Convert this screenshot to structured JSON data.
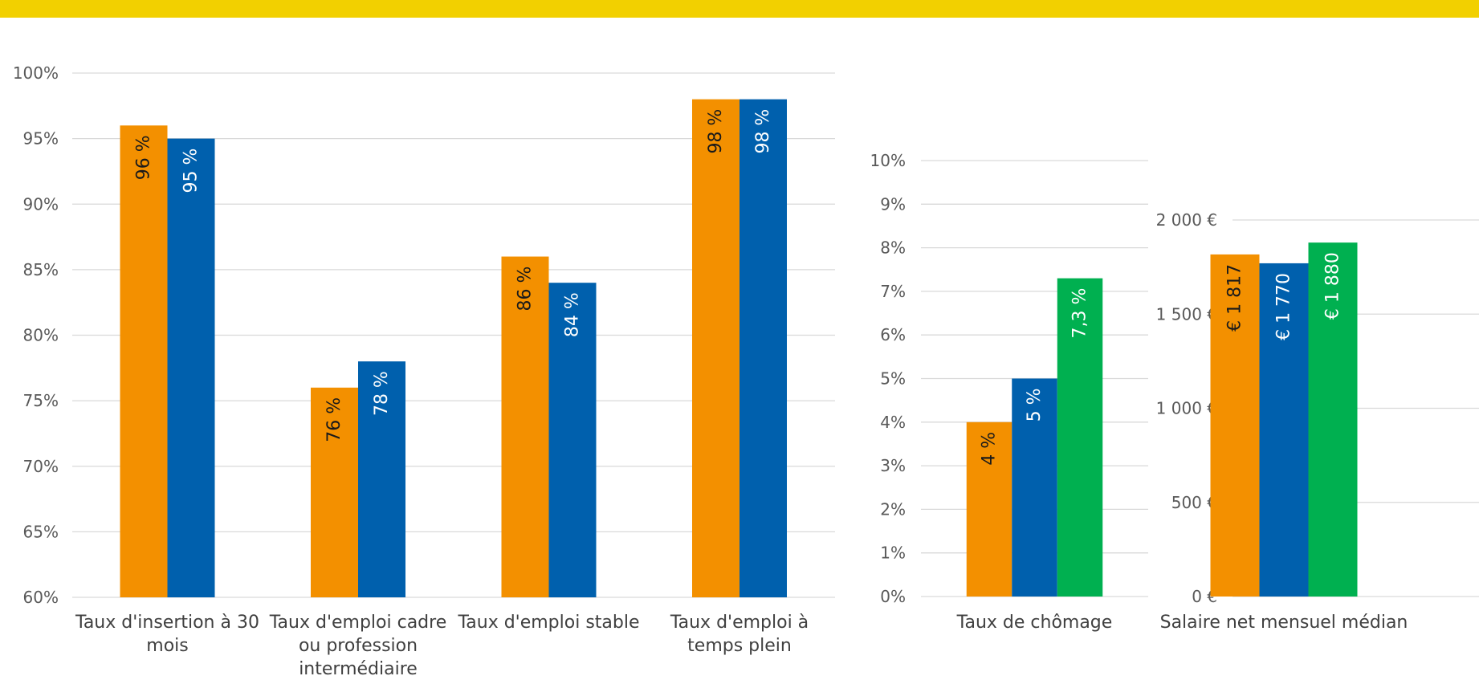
{
  "colors": {
    "banner": "#F2D000",
    "orange": "#F39000",
    "blue": "#0060AD",
    "green": "#00B050",
    "grid": "#D9D9D9",
    "axis_text": "#595959",
    "category_text": "#404040"
  },
  "chart_data": [
    {
      "type": "bar",
      "categories": [
        "Taux d'insertion à 30 mois",
        "Taux d'emploi cadre ou profession intermédiaire",
        "Taux d'emploi stable",
        "Taux d'emploi à temps plein"
      ],
      "series": [
        {
          "color": "orange",
          "values": [
            96,
            76,
            86,
            98
          ],
          "labels": [
            "96 %",
            "76 %",
            "86 %",
            "98 %"
          ]
        },
        {
          "color": "blue",
          "values": [
            95,
            78,
            84,
            98
          ],
          "labels": [
            "95 %",
            "78 %",
            "84 %",
            "98 %"
          ]
        }
      ],
      "ylim": [
        60,
        100
      ],
      "yticks": [
        "60%",
        "65%",
        "70%",
        "75%",
        "80%",
        "85%",
        "90%",
        "95%",
        "100%"
      ],
      "grid": true,
      "legend": "none"
    },
    {
      "type": "bar",
      "categories": [
        "Taux de chômage"
      ],
      "series": [
        {
          "color": "orange",
          "values": [
            4
          ],
          "labels": [
            "4 %"
          ]
        },
        {
          "color": "blue",
          "values": [
            5
          ],
          "labels": [
            "5 %"
          ]
        },
        {
          "color": "green",
          "values": [
            7.3
          ],
          "labels": [
            "7,3 %"
          ]
        }
      ],
      "ylim": [
        0,
        10
      ],
      "yticks": [
        "0%",
        "1%",
        "2%",
        "3%",
        "4%",
        "5%",
        "6%",
        "7%",
        "8%",
        "9%",
        "10%"
      ],
      "grid": true,
      "legend": "none"
    },
    {
      "type": "bar",
      "categories": [
        "Salaire net mensuel médian"
      ],
      "series": [
        {
          "color": "orange",
          "values": [
            1817
          ],
          "labels": [
            "€ 1 817"
          ]
        },
        {
          "color": "blue",
          "values": [
            1770
          ],
          "labels": [
            "€ 1 770"
          ]
        },
        {
          "color": "green",
          "values": [
            1880
          ],
          "labels": [
            "€ 1 880"
          ]
        }
      ],
      "ylim": [
        0,
        2000
      ],
      "yticks": [
        "0 €",
        "500 €",
        "1 000 €",
        "1 500 €",
        "2 000 €"
      ],
      "grid": true,
      "legend": "none"
    }
  ]
}
